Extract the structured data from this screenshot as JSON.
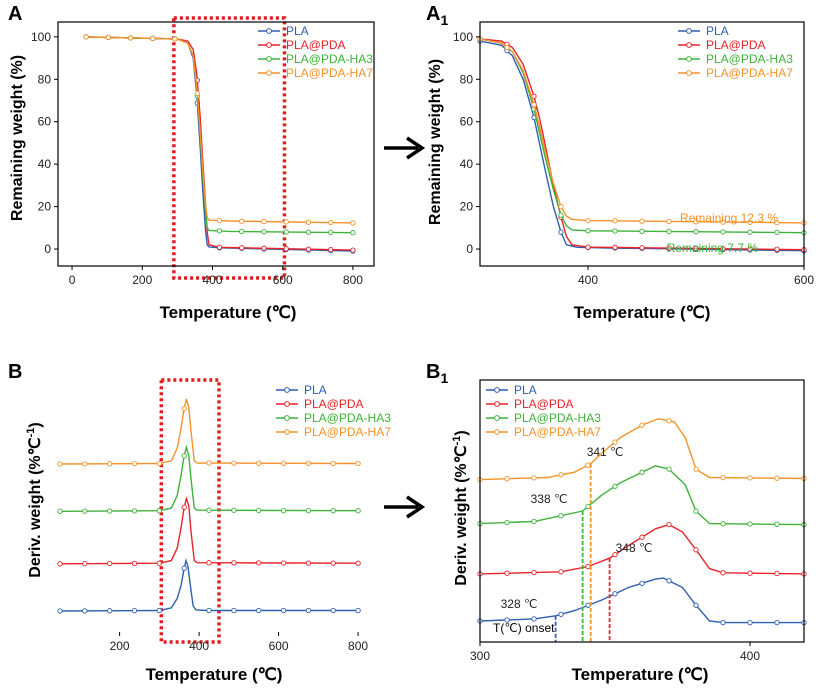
{
  "colors": {
    "PLA": "#2e5fb0",
    "PLA@PDA": "#e8232a",
    "PLA@PDA-HA3": "#3fb23a",
    "PLA@PDA-HA7": "#f5922a",
    "highlight": "#e41a1c",
    "axis": "#000000"
  },
  "arrow_glyph": "→",
  "chart_data": [
    {
      "panel": "A",
      "type": "line",
      "xlabel": "Temperature (℃)",
      "ylabel": "Remaining weight (%)",
      "xlim": [
        -40,
        860
      ],
      "ylim": [
        -8,
        107
      ],
      "xticks": [
        0,
        200,
        400,
        600,
        800
      ],
      "yticks": [
        0,
        20,
        40,
        60,
        80,
        100
      ],
      "legend": [
        "PLA",
        "PLA@PDA",
        "PLA@PDA-HA3",
        "PLA@PDA-HA7"
      ],
      "highlight_range": {
        "x": [
          290,
          605
        ],
        "y": [
          -8,
          107
        ]
      },
      "series": [
        {
          "name": "PLA",
          "points": [
            [
              40,
              100
            ],
            [
              300,
              99
            ],
            [
              330,
              97
            ],
            [
              345,
              90
            ],
            [
              355,
              73
            ],
            [
              365,
              48
            ],
            [
              372,
              28
            ],
            [
              380,
              9
            ],
            [
              385,
              2
            ],
            [
              390,
              1
            ],
            [
              420,
              0.6
            ],
            [
              800,
              -1
            ]
          ]
        },
        {
          "name": "PLA@PDA",
          "points": [
            [
              40,
              100
            ],
            [
              300,
              99
            ],
            [
              330,
              98
            ],
            [
              345,
              94
            ],
            [
              355,
              83
            ],
            [
              365,
              62
            ],
            [
              372,
              42
            ],
            [
              380,
              22
            ],
            [
              385,
              8
            ],
            [
              390,
              2
            ],
            [
              420,
              0.8
            ],
            [
              800,
              -0.5
            ]
          ]
        },
        {
          "name": "PLA@PDA-HA3",
          "points": [
            [
              40,
              100
            ],
            [
              300,
              99
            ],
            [
              330,
              97
            ],
            [
              345,
              91
            ],
            [
              355,
              76
            ],
            [
              365,
              53
            ],
            [
              372,
              35
            ],
            [
              380,
              17
            ],
            [
              385,
              10
            ],
            [
              390,
              8.8
            ],
            [
              450,
              8.3
            ],
            [
              800,
              7.7
            ]
          ]
        },
        {
          "name": "PLA@PDA-HA7",
          "points": [
            [
              40,
              100
            ],
            [
              300,
              99
            ],
            [
              330,
              97
            ],
            [
              345,
              91
            ],
            [
              355,
              77
            ],
            [
              365,
              55
            ],
            [
              372,
              38
            ],
            [
              380,
              21
            ],
            [
              385,
              15
            ],
            [
              390,
              13.6
            ],
            [
              450,
              13.2
            ],
            [
              800,
              12.3
            ]
          ]
        }
      ]
    },
    {
      "panel": "A1",
      "type": "line",
      "xlabel": "Temperature (℃)",
      "ylabel": "Remaining weight (%)",
      "xlim": [
        300,
        600
      ],
      "ylim": [
        -8,
        107
      ],
      "xticks": [
        400,
        600
      ],
      "yticks": [
        0,
        20,
        40,
        60,
        80,
        100
      ],
      "legend": [
        "PLA",
        "PLA@PDA",
        "PLA@PDA-HA3",
        "PLA@PDA-HA7"
      ],
      "annotations": [
        "Remaining 12.3 %",
        "Remaining 7.7 %"
      ],
      "series": [
        {
          "name": "PLA",
          "points": [
            [
              300,
              98
            ],
            [
              320,
              96
            ],
            [
              330,
              91
            ],
            [
              340,
              80
            ],
            [
              350,
              62
            ],
            [
              355,
              50
            ],
            [
              360,
              38
            ],
            [
              368,
              20
            ],
            [
              375,
              8
            ],
            [
              380,
              2
            ],
            [
              390,
              0.8
            ],
            [
              420,
              0.5
            ],
            [
              600,
              -0.8
            ]
          ]
        },
        {
          "name": "PLA@PDA",
          "points": [
            [
              300,
              99
            ],
            [
              320,
              98
            ],
            [
              330,
              95
            ],
            [
              340,
              87
            ],
            [
              350,
              72
            ],
            [
              355,
              62
            ],
            [
              360,
              50
            ],
            [
              368,
              30
            ],
            [
              375,
              15
            ],
            [
              380,
              6
            ],
            [
              385,
              2
            ],
            [
              400,
              0.9
            ],
            [
              600,
              -0.3
            ]
          ]
        },
        {
          "name": "PLA@PDA-HA3",
          "points": [
            [
              300,
              99
            ],
            [
              320,
              97
            ],
            [
              330,
              93
            ],
            [
              340,
              83
            ],
            [
              350,
              66
            ],
            [
              355,
              55
            ],
            [
              360,
              44
            ],
            [
              368,
              28
            ],
            [
              375,
              16
            ],
            [
              380,
              11
            ],
            [
              385,
              9
            ],
            [
              400,
              8.6
            ],
            [
              600,
              7.7
            ]
          ]
        },
        {
          "name": "PLA@PDA-HA7",
          "points": [
            [
              300,
              99
            ],
            [
              320,
              97
            ],
            [
              330,
              93
            ],
            [
              340,
              84
            ],
            [
              350,
              68
            ],
            [
              355,
              58
            ],
            [
              360,
              47
            ],
            [
              368,
              31
            ],
            [
              375,
              20
            ],
            [
              380,
              15.5
            ],
            [
              385,
              14
            ],
            [
              400,
              13.4
            ],
            [
              600,
              12.3
            ]
          ]
        }
      ]
    },
    {
      "panel": "B",
      "type": "line",
      "xlabel": "Temperature (℃)",
      "ylabel": "Deriv. weight (%℃-1)",
      "xlim": [
        40,
        830
      ],
      "ylim": [
        0,
        240
      ],
      "xticks": [
        200,
        400,
        600,
        800
      ],
      "legend": [
        "PLA",
        "PLA@PDA",
        "PLA@PDA-HA3",
        "PLA@PDA-HA7"
      ],
      "highlight_range": {
        "x": [
          305,
          450
        ],
        "y": [
          0,
          240
        ]
      },
      "series": [
        {
          "name": "PLA",
          "points": [
            [
              50,
              20
            ],
            [
              300,
              20.5
            ],
            [
              330,
              23
            ],
            [
              345,
              32
            ],
            [
              355,
              45
            ],
            [
              362,
              60
            ],
            [
              367,
              68
            ],
            [
              372,
              62
            ],
            [
              378,
              45
            ],
            [
              385,
              25
            ],
            [
              392,
              21
            ],
            [
              420,
              20.5
            ],
            [
              800,
              20.5
            ]
          ]
        },
        {
          "name": "PLA@PDA",
          "points": [
            [
              50,
              65
            ],
            [
              300,
              65.5
            ],
            [
              330,
              68
            ],
            [
              345,
              80
            ],
            [
              355,
              100
            ],
            [
              362,
              118
            ],
            [
              368,
              127
            ],
            [
              374,
              120
            ],
            [
              380,
              95
            ],
            [
              388,
              68
            ],
            [
              395,
              66
            ],
            [
              800,
              65.5
            ]
          ]
        },
        {
          "name": "PLA@PDA-HA3",
          "points": [
            [
              50,
              115
            ],
            [
              300,
              115.5
            ],
            [
              330,
              118
            ],
            [
              345,
              130
            ],
            [
              355,
              150
            ],
            [
              362,
              167
            ],
            [
              368,
              176
            ],
            [
              374,
              168
            ],
            [
              380,
              145
            ],
            [
              388,
              118
            ],
            [
              395,
              116
            ],
            [
              800,
              115.5
            ]
          ]
        },
        {
          "name": "PLA@PDA-HA7",
          "points": [
            [
              50,
              160
            ],
            [
              300,
              160.5
            ],
            [
              330,
              163
            ],
            [
              345,
              175
            ],
            [
              355,
              195
            ],
            [
              362,
              212
            ],
            [
              368,
              222
            ],
            [
              374,
              214
            ],
            [
              380,
              190
            ],
            [
              388,
              163
            ],
            [
              395,
              161
            ],
            [
              800,
              160.5
            ]
          ]
        }
      ]
    },
    {
      "panel": "B1",
      "type": "line",
      "xlabel": "Temperature (℃)",
      "ylabel": "Deriv. weight (%℃-1)",
      "xlim": [
        300,
        420
      ],
      "ylim": [
        0,
        250
      ],
      "xticks": [
        300,
        400
      ],
      "legend": [
        "PLA",
        "PLA@PDA",
        "PLA@PDA-HA3",
        "PLA@PDA-HA7"
      ],
      "onset_label": "T(℃) onset",
      "onsets": [
        {
          "series": "PLA",
          "temp": 328,
          "label": "328 ℃"
        },
        {
          "series": "PLA@PDA-HA3",
          "temp": 338,
          "label": "338 ℃"
        },
        {
          "series": "PLA@PDA-HA7",
          "temp": 341,
          "label": "341 ℃"
        },
        {
          "series": "PLA@PDA",
          "temp": 348,
          "label": "348 ℃"
        }
      ],
      "series": [
        {
          "name": "PLA",
          "points": [
            [
              300,
              20
            ],
            [
              320,
              22
            ],
            [
              328,
              25
            ],
            [
              335,
              30
            ],
            [
              345,
              40
            ],
            [
              355,
              52
            ],
            [
              365,
              60
            ],
            [
              368,
              61
            ],
            [
              375,
              52
            ],
            [
              380,
              35
            ],
            [
              385,
              20
            ],
            [
              390,
              18.5
            ],
            [
              420,
              18.5
            ]
          ]
        },
        {
          "name": "PLA@PDA",
          "points": [
            [
              300,
              65
            ],
            [
              330,
              67
            ],
            [
              340,
              72
            ],
            [
              348,
              80
            ],
            [
              355,
              92
            ],
            [
              365,
              108
            ],
            [
              370,
              112
            ],
            [
              375,
              105
            ],
            [
              380,
              88
            ],
            [
              385,
              70
            ],
            [
              390,
              66
            ],
            [
              420,
              65
            ]
          ]
        },
        {
          "name": "PLA@PDA-HA3",
          "points": [
            [
              300,
              113
            ],
            [
              320,
              115
            ],
            [
              338,
              125
            ],
            [
              345,
              140
            ],
            [
              352,
              152
            ],
            [
              360,
              162
            ],
            [
              365,
              168
            ],
            [
              370,
              165
            ],
            [
              376,
              150
            ],
            [
              380,
              125
            ],
            [
              385,
              113
            ],
            [
              420,
              112
            ]
          ]
        },
        {
          "name": "PLA@PDA-HA7",
          "points": [
            [
              300,
              155
            ],
            [
              325,
              157
            ],
            [
              335,
              162
            ],
            [
              341,
              170
            ],
            [
              345,
              180
            ],
            [
              352,
              195
            ],
            [
              360,
              207
            ],
            [
              366,
              213
            ],
            [
              372,
              210
            ],
            [
              376,
              195
            ],
            [
              380,
              165
            ],
            [
              385,
              157
            ],
            [
              420,
              156
            ]
          ]
        }
      ]
    }
  ]
}
